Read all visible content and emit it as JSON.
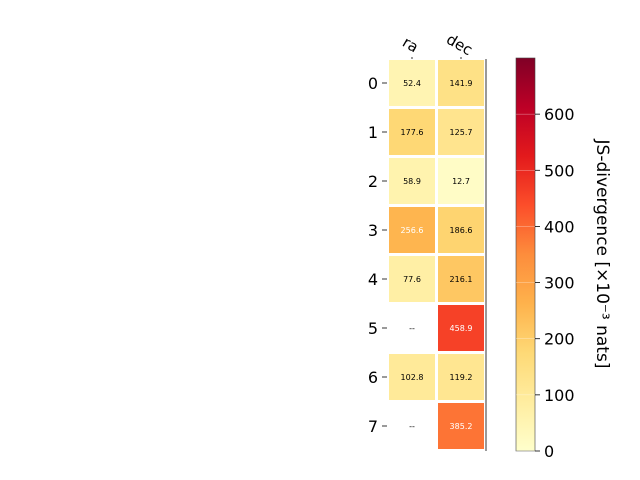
{
  "chart_data": {
    "type": "heatmap",
    "columns": [
      "ra",
      "dec"
    ],
    "rows": [
      "0",
      "1",
      "2",
      "3",
      "4",
      "5",
      "6",
      "7"
    ],
    "values": [
      [
        52.4,
        141.9
      ],
      [
        177.6,
        125.7
      ],
      [
        58.9,
        12.7
      ],
      [
        256.6,
        186.6
      ],
      [
        77.6,
        216.1
      ],
      [
        null,
        458.9
      ],
      [
        102.8,
        119.2
      ],
      [
        null,
        385.2
      ]
    ],
    "missing_label": "--",
    "colormap": "YlOrRd",
    "colorbar": {
      "label": "JS-divergence [×10⁻³ nats]",
      "range": [
        0,
        700
      ],
      "ticks": [
        "0",
        "100",
        "200",
        "300",
        "400",
        "500",
        "600"
      ]
    },
    "grid": false,
    "colors": {
      "text_dark": "#000000",
      "text_light": "#ffffff",
      "cell_border": "#ffffff"
    }
  }
}
